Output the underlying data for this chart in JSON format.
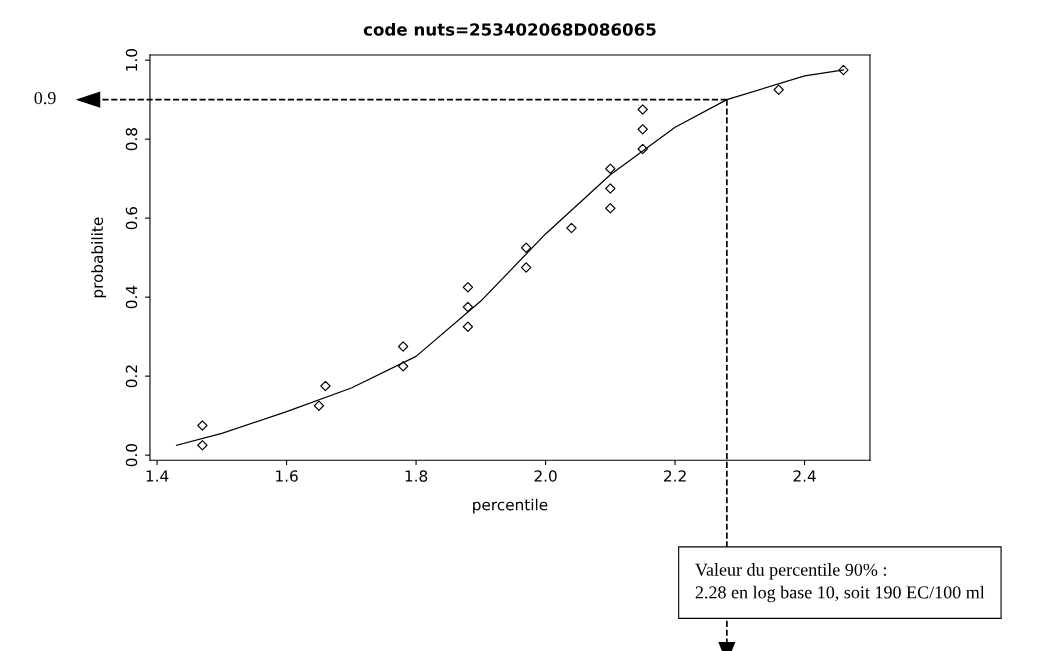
{
  "chart_data": {
    "type": "scatter",
    "title": "code nuts=253402068D086065",
    "xlabel": "percentile",
    "ylabel": "probabilite",
    "xlim": [
      1.389,
      2.501
    ],
    "ylim": [
      -0.013,
      1.013
    ],
    "xticks": [
      1.4,
      1.6,
      1.8,
      {
        "value": 2.0,
        "label": "2.0"
      },
      2.2,
      2.4
    ],
    "yticks": [
      {
        "value": 0.0,
        "label": "0.0"
      },
      0.2,
      0.4,
      0.6,
      0.8,
      {
        "value": 1.0,
        "label": "1.0"
      }
    ],
    "grid": false,
    "series": [
      {
        "marker": "diamond",
        "color": "#000000",
        "x": [
          1.47,
          1.47,
          1.65,
          1.66,
          1.78,
          1.78,
          1.88,
          1.88,
          1.88,
          1.97,
          1.97,
          2.04,
          2.1,
          2.1,
          2.1,
          2.15,
          2.15,
          2.15,
          2.36,
          2.46
        ],
        "values": [
          0.075,
          0.025,
          0.125,
          0.175,
          0.275,
          0.225,
          0.425,
          0.375,
          0.325,
          0.525,
          0.475,
          0.575,
          0.725,
          0.675,
          0.625,
          0.875,
          0.825,
          0.775,
          0.925,
          0.975
        ]
      },
      {
        "type": "line",
        "marker": "none",
        "color": "#000000",
        "x": [
          1.43,
          1.5,
          1.6,
          1.7,
          1.8,
          1.9,
          2.0,
          2.1,
          2.2,
          2.28,
          2.4,
          2.46
        ],
        "values": [
          0.025,
          0.055,
          0.11,
          0.17,
          0.25,
          0.39,
          0.56,
          0.71,
          0.83,
          0.9,
          0.96,
          0.975
        ]
      }
    ],
    "ref_lines": [
      {
        "axis": "y",
        "value": 0.9,
        "label": "0.9",
        "line_style": "dashed",
        "color": "#000000"
      },
      {
        "axis": "x",
        "value": 2.28,
        "line_style": "dashed",
        "color": "#000000"
      }
    ],
    "annotations": [
      "Valeur du percentile 90% :\n2.28 en log base 10, soit 190 EC/100 ml"
    ]
  }
}
